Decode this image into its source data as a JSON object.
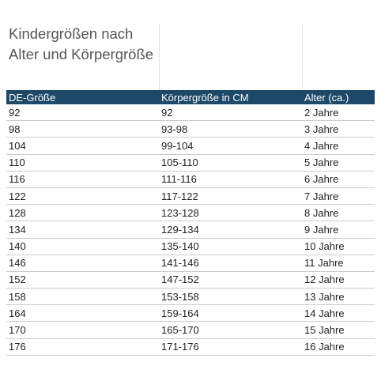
{
  "title": "Kindergrößen nach Alter und Körpergröße",
  "headers": [
    "DE-Größe",
    "Körpergröße in CM",
    "Alter (ca.)"
  ],
  "rows": [
    [
      "92",
      "92",
      "2 Jahre"
    ],
    [
      "98",
      "93-98",
      "3 Jahre"
    ],
    [
      "104",
      "99-104",
      "4 Jahre"
    ],
    [
      "110",
      "105-110",
      "5 Jahre"
    ],
    [
      "116",
      "111-116",
      "6 Jahre"
    ],
    [
      "122",
      "117-122",
      "7 Jahre"
    ],
    [
      "128",
      "123-128",
      "8 Jahre"
    ],
    [
      "134",
      "129-134",
      "9 Jahre"
    ],
    [
      "140",
      "135-140",
      "10 Jahre"
    ],
    [
      "146",
      "141-146",
      "11 Jahre"
    ],
    [
      "152",
      "147-152",
      "12 Jahre"
    ],
    [
      "158",
      "153-158",
      "13 Jahre"
    ],
    [
      "164",
      "159-164",
      "14 Jahre"
    ],
    [
      "170",
      "165-170",
      "15 Jahre"
    ],
    [
      "176",
      "171-176",
      "16 Jahre"
    ]
  ],
  "colors": {
    "header_bg": "#1e4868",
    "header_text": "#ffffff",
    "title_text": "#555555"
  }
}
